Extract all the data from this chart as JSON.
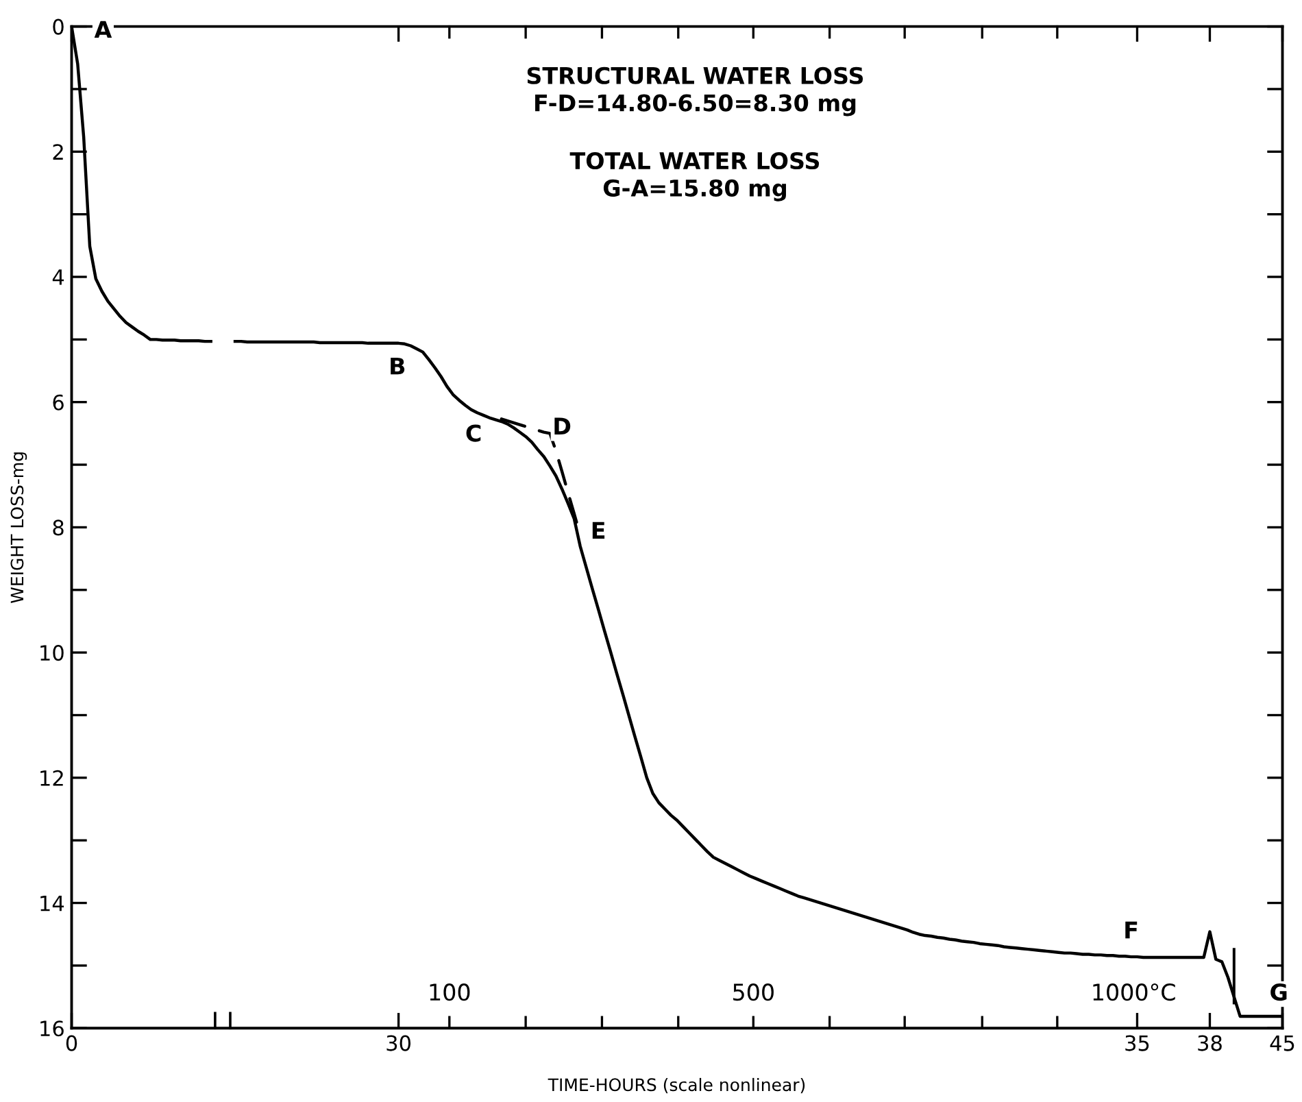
{
  "chart_data": {
    "type": "line",
    "xlabel": "TIME-HOURS (scale nonlinear)",
    "ylabel": "WEIGHT LOSS-mg",
    "ylim": [
      16,
      0
    ],
    "yticks": [
      0,
      {
        "value": 1,
        "label": null
      },
      2,
      {
        "value": 3,
        "label": null
      },
      4,
      {
        "value": 5,
        "label": null
      },
      6,
      {
        "value": 7,
        "label": null
      },
      8,
      {
        "value": 9,
        "label": null
      },
      10,
      {
        "value": 11,
        "label": null
      },
      12,
      {
        "value": 13,
        "label": null
      },
      14,
      {
        "value": 15,
        "label": null
      },
      16
    ],
    "grid": false,
    "legend": false,
    "categories": [
      "0",
      null,
      null,
      null,
      null,
      null,
      null,
      null,
      null,
      null,
      null,
      null,
      null,
      null,
      null,
      null,
      null,
      null,
      null,
      null,
      null,
      null,
      null,
      null,
      null,
      null,
      null,
      null,
      null,
      null,
      null,
      null,
      null,
      null,
      null,
      null,
      null,
      null,
      null,
      null,
      null,
      null,
      null,
      null,
      null,
      null,
      null,
      null,
      null,
      null,
      null,
      null,
      null,
      null,
      "30",
      null,
      null,
      null,
      null,
      null,
      null,
      null,
      null,
      null,
      null,
      null,
      null,
      null,
      null,
      null,
      null,
      null,
      null,
      null,
      null,
      null,
      null,
      null,
      null,
      null,
      null,
      null,
      null,
      null,
      null,
      null,
      null,
      null,
      null,
      null,
      null,
      null,
      null,
      null,
      null,
      null,
      null,
      null,
      null,
      null,
      null,
      null,
      null,
      null,
      null,
      null,
      null,
      null,
      null,
      null,
      null,
      null,
      null,
      null,
      null,
      null,
      null,
      null,
      null,
      null,
      null,
      null,
      null,
      null,
      null,
      null,
      null,
      null,
      null,
      null,
      null,
      null,
      null,
      null,
      null,
      null,
      null,
      null,
      null,
      null,
      null,
      null,
      null,
      null,
      null,
      null,
      null,
      null,
      null,
      null,
      null,
      null,
      null,
      null,
      null,
      null,
      null,
      null,
      null,
      null,
      null,
      null,
      null,
      null,
      null,
      null,
      null,
      null,
      null,
      null,
      null,
      null,
      null,
      null,
      null,
      null,
      "35",
      null,
      null,
      null,
      null,
      null,
      null,
      null,
      null,
      null,
      null,
      null,
      "38",
      null,
      null,
      null,
      null,
      null,
      null,
      null,
      null,
      null,
      null,
      null,
      "45"
    ],
    "series": [
      {
        "color": "#000000",
        "line_style": "solid",
        "values": [
          0,
          0.6,
          1.77,
          3.51,
          4.03,
          4.23,
          4.39,
          4.51,
          4.63,
          4.73,
          4.8,
          4.87,
          4.93,
          5.0,
          5.0,
          5.01,
          5.01,
          5.01,
          5.02,
          5.02,
          5.02,
          5.02,
          5.03,
          5.03,
          null,
          null,
          null,
          5.03,
          5.03,
          5.04,
          5.04,
          5.04,
          5.04,
          5.04,
          5.04,
          5.04,
          5.04,
          5.04,
          5.04,
          5.04,
          5.04,
          5.05,
          5.05,
          5.05,
          5.05,
          5.05,
          5.05,
          5.05,
          5.05,
          5.06,
          5.06,
          5.06,
          5.06,
          5.06,
          5.06,
          5.07,
          5.1,
          5.15,
          5.2,
          5.32,
          5.45,
          5.59,
          5.75,
          5.88,
          5.97,
          6.05,
          6.12,
          6.17,
          6.21,
          6.25,
          6.28,
          6.31,
          6.35,
          6.41,
          6.48,
          6.55,
          6.64,
          6.76,
          6.87,
          7.02,
          7.18,
          7.39,
          7.62,
          7.86,
          8.3,
          8.64,
          8.98,
          9.31,
          9.65,
          9.98,
          10.32,
          10.65,
          10.99,
          11.33,
          11.66,
          12.0,
          12.25,
          12.4,
          12.5,
          12.6,
          12.68,
          12.78,
          12.88,
          12.98,
          13.08,
          13.18,
          13.27,
          13.32,
          13.37,
          13.42,
          13.47,
          13.52,
          13.57,
          13.61,
          13.65,
          13.69,
          13.73,
          13.77,
          13.81,
          13.85,
          13.89,
          13.92,
          13.95,
          13.98,
          14.01,
          14.04,
          14.07,
          14.1,
          14.13,
          14.16,
          14.19,
          14.22,
          14.25,
          14.28,
          14.31,
          14.34,
          14.37,
          14.4,
          14.43,
          14.47,
          14.5,
          14.52,
          14.53,
          14.55,
          14.56,
          14.58,
          14.59,
          14.61,
          14.62,
          14.63,
          14.65,
          14.66,
          14.67,
          14.68,
          14.7,
          14.71,
          14.72,
          14.73,
          14.74,
          14.75,
          14.76,
          14.77,
          14.78,
          14.79,
          14.8,
          14.8,
          14.81,
          14.82,
          14.82,
          14.83,
          14.83,
          14.84,
          14.84,
          14.85,
          14.85,
          14.86,
          14.86,
          14.87,
          14.87,
          14.87,
          14.87,
          14.87,
          14.87,
          14.87,
          14.87,
          14.87,
          14.87,
          14.87,
          14.46,
          14.9,
          14.94,
          15.19,
          15.5,
          15.81,
          15.81,
          15.81,
          15.81,
          15.81,
          15.81,
          15.81,
          15.81
        ]
      },
      {
        "color": "#000000",
        "line_style": "dashed",
        "values": [
          null,
          null,
          null,
          null,
          null,
          null,
          null,
          null,
          null,
          null,
          null,
          null,
          null,
          null,
          null,
          null,
          null,
          null,
          null,
          null,
          null,
          null,
          null,
          null,
          null,
          null,
          null,
          null,
          null,
          null,
          null,
          null,
          null,
          null,
          null,
          null,
          null,
          null,
          null,
          null,
          null,
          null,
          null,
          null,
          null,
          null,
          null,
          null,
          null,
          null,
          null,
          null,
          null,
          null,
          null,
          null,
          null,
          null,
          null,
          null,
          null,
          null,
          null,
          null,
          null,
          null,
          null,
          null,
          null,
          null,
          null,
          6.27,
          6.3,
          6.33,
          6.36,
          6.39,
          6.42,
          6.45,
          6.48,
          6.5,
          6.78,
          7.11,
          7.45,
          7.78,
          8.12,
          null,
          null,
          null,
          null,
          null,
          null,
          null,
          null,
          null,
          null,
          null,
          null,
          null,
          null,
          null,
          null,
          null,
          null,
          null,
          null,
          null,
          null,
          null,
          null,
          null,
          null,
          null,
          null,
          null,
          null,
          null,
          null,
          null,
          null,
          null,
          null,
          null,
          null,
          null,
          null,
          null,
          null,
          null,
          null,
          null,
          null,
          null,
          null,
          null,
          null,
          null,
          null,
          null,
          null,
          null,
          null,
          null,
          null,
          null,
          null,
          null,
          null,
          null,
          null,
          null,
          null,
          null,
          null,
          null,
          null,
          null,
          null,
          null,
          null,
          null,
          null,
          null,
          null,
          null,
          null,
          null,
          null,
          null,
          null,
          null,
          null,
          null,
          null,
          null,
          null,
          null,
          null,
          null,
          null,
          null,
          null,
          null,
          null,
          null,
          null,
          null,
          null,
          null,
          null,
          null,
          null,
          null,
          null,
          null,
          null,
          null,
          null,
          null,
          null,
          null,
          null
        ]
      },
      {
        "type": "bar",
        "color": "#000000",
        "values": [
          null,
          null,
          null,
          null,
          null,
          null,
          null,
          null,
          null,
          null,
          null,
          null,
          null,
          null,
          null,
          null,
          null,
          null,
          null,
          null,
          null,
          null,
          null,
          null,
          null,
          null,
          null,
          null,
          null,
          null,
          null,
          null,
          null,
          null,
          null,
          null,
          null,
          null,
          null,
          null,
          null,
          null,
          null,
          null,
          null,
          null,
          null,
          null,
          null,
          null,
          null,
          null,
          null,
          null,
          null,
          null,
          null,
          null,
          null,
          null,
          null,
          null,
          null,
          null,
          null,
          null,
          null,
          null,
          null,
          null,
          null,
          null,
          null,
          null,
          null,
          null,
          null,
          null,
          null,
          null,
          null,
          null,
          null,
          null,
          null,
          null,
          null,
          null,
          null,
          null,
          null,
          null,
          null,
          null,
          null,
          null,
          null,
          null,
          null,
          null,
          null,
          null,
          null,
          null,
          null,
          null,
          null,
          null,
          null,
          null,
          null,
          null,
          null,
          null,
          null,
          null,
          null,
          null,
          null,
          null,
          null,
          null,
          null,
          null,
          null,
          null,
          null,
          null,
          null,
          null,
          null,
          null,
          null,
          null,
          null,
          null,
          null,
          null,
          null,
          null,
          null,
          null,
          null,
          null,
          null,
          null,
          null,
          null,
          null,
          null,
          null,
          null,
          null,
          null,
          null,
          null,
          null,
          null,
          null,
          null,
          null,
          null,
          null,
          null,
          null,
          null,
          null,
          null,
          null,
          null,
          null,
          null,
          null,
          null,
          null,
          null,
          null,
          null,
          null,
          null,
          null,
          null,
          null,
          null,
          null,
          null,
          null,
          null,
          null,
          null,
          null,
          null,
          0.9,
          null,
          null,
          null,
          null,
          null,
          null,
          null,
          null
        ],
        "base": [
          null,
          null,
          null,
          null,
          null,
          null,
          null,
          null,
          null,
          null,
          null,
          null,
          null,
          null,
          null,
          null,
          null,
          null,
          null,
          null,
          null,
          null,
          null,
          null,
          null,
          null,
          null,
          null,
          null,
          null,
          null,
          null,
          null,
          null,
          null,
          null,
          null,
          null,
          null,
          null,
          null,
          null,
          null,
          null,
          null,
          null,
          null,
          null,
          null,
          null,
          null,
          null,
          null,
          null,
          null,
          null,
          null,
          null,
          null,
          null,
          null,
          null,
          null,
          null,
          null,
          null,
          null,
          null,
          null,
          null,
          null,
          null,
          null,
          null,
          null,
          null,
          null,
          null,
          null,
          null,
          null,
          null,
          null,
          null,
          null,
          null,
          null,
          null,
          null,
          null,
          null,
          null,
          null,
          null,
          null,
          null,
          null,
          null,
          null,
          null,
          null,
          null,
          null,
          null,
          null,
          null,
          null,
          null,
          null,
          null,
          null,
          null,
          null,
          null,
          null,
          null,
          null,
          null,
          null,
          null,
          null,
          null,
          null,
          null,
          null,
          null,
          null,
          null,
          null,
          null,
          null,
          null,
          null,
          null,
          null,
          null,
          null,
          null,
          null,
          null,
          null,
          null,
          null,
          null,
          null,
          null,
          null,
          null,
          null,
          null,
          null,
          null,
          null,
          null,
          null,
          null,
          null,
          null,
          null,
          null,
          null,
          null,
          null,
          null,
          null,
          null,
          null,
          null,
          null,
          null,
          null,
          null,
          null,
          null,
          null,
          null,
          null,
          null,
          null,
          null,
          null,
          null,
          null,
          null,
          null,
          null,
          null,
          null,
          null,
          null,
          null,
          null,
          14.72,
          null,
          null,
          null,
          null,
          null,
          null,
          null,
          null
        ]
      }
    ],
    "annotations": [
      "STRUCTURAL WATER LOSS\nF-D=14.80-6.50=8.30 mg",
      "TOTAL WATER LOSS\nG-A=15.80 mg",
      "A",
      "B",
      "C",
      "D",
      "E",
      "F",
      "G",
      "100",
      "500",
      "1000°C"
    ]
  }
}
